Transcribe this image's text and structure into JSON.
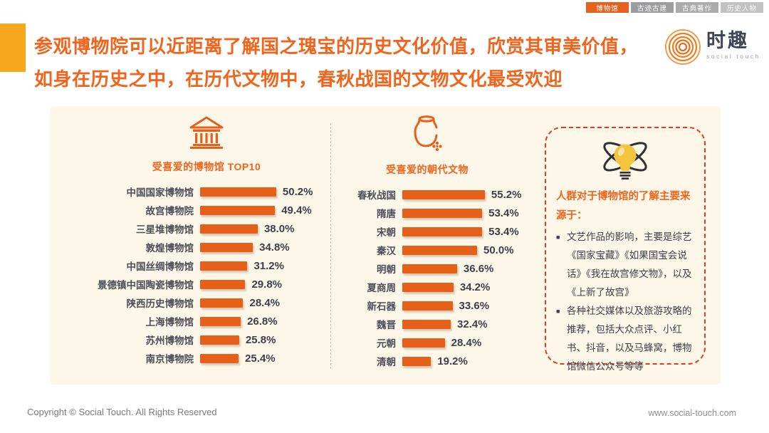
{
  "tabs": [
    {
      "label": "博物馆",
      "active": true
    },
    {
      "label": "古迹古建",
      "active": false
    },
    {
      "label": "古典著作",
      "active": false
    },
    {
      "label": "历史人物",
      "active": false
    }
  ],
  "title": {
    "line1": "参观博物院可以近距离了解国之瑰宝的历史文化价值，欣赏其审美价值，",
    "line2": "如身在历史之中，在历代文物中，春秋战国的文物文化最受欢迎"
  },
  "logo": {
    "name": "时趣",
    "subtitle": "social touch"
  },
  "chart_data": [
    {
      "type": "bar",
      "orientation": "horizontal",
      "title": "受喜爱的博物馆 TOP10",
      "icon": "museum-icon",
      "unit": "%",
      "xlim": [
        0,
        60
      ],
      "grid": false,
      "categories": [
        "中国国家博物馆",
        "故宫博物院",
        "三星堆博物馆",
        "敦煌博物馆",
        "中国丝绸博物馆",
        "景德镇中国陶瓷博物馆",
        "陕西历史博物馆",
        "上海博物馆",
        "苏州博物馆",
        "南京博物院"
      ],
      "values": [
        50.2,
        49.4,
        38.0,
        34.8,
        31.2,
        29.8,
        28.4,
        26.8,
        25.8,
        25.4
      ],
      "value_labels": [
        "50.2%",
        "49.4%",
        "38.0%",
        "34.8%",
        "31.2%",
        "29.8%",
        "28.4%",
        "26.8%",
        "25.8%",
        "25.4%"
      ]
    },
    {
      "type": "bar",
      "orientation": "horizontal",
      "title": "受喜爱的朝代文物",
      "icon": "vase-icon",
      "unit": "%",
      "xlim": [
        0,
        60
      ],
      "grid": false,
      "categories": [
        "春秋战国",
        "隋唐",
        "宋朝",
        "秦汉",
        "明朝",
        "夏商周",
        "新石器",
        "魏晋",
        "元朝",
        "清朝"
      ],
      "values": [
        55.2,
        53.4,
        53.4,
        50.0,
        36.6,
        34.2,
        33.6,
        32.4,
        28.4,
        19.2
      ],
      "value_labels": [
        "55.2%",
        "53.4%",
        "53.4%",
        "50.0%",
        "36.6%",
        "34.2%",
        "33.6%",
        "32.4%",
        "28.4%",
        "19.2%"
      ]
    }
  ],
  "insight_box": {
    "icon": "lightbulb-icon",
    "heading": "人群对于博物馆的了解主要来源于：",
    "bullet_marker": "■",
    "bullets": [
      "文艺作品的影响，主要是综艺《国家宝藏》《如果国宝会说话》《我在故宫修文物》，以及《上新了故宫》",
      "各种社交媒体以及旅游攻略的推荐，包括大众点评、小红书、抖音，以及马蜂窝，博物馆微信公众号等等"
    ]
  },
  "footer": {
    "copyright": "Copyright © Social Touch. All Rights Reserved",
    "website": "www.social-touch.com"
  },
  "colors": {
    "accent": "#e6601a",
    "title_orange": "#f2641c",
    "tab_active": "#e8611c",
    "panel_bg": "#fcf7e8",
    "highlight_square": "#f5a81c",
    "dashed_box_border": "#e23b1e",
    "bulb_yellow": "#f4c43c",
    "label_dark": "#4d4e58"
  }
}
